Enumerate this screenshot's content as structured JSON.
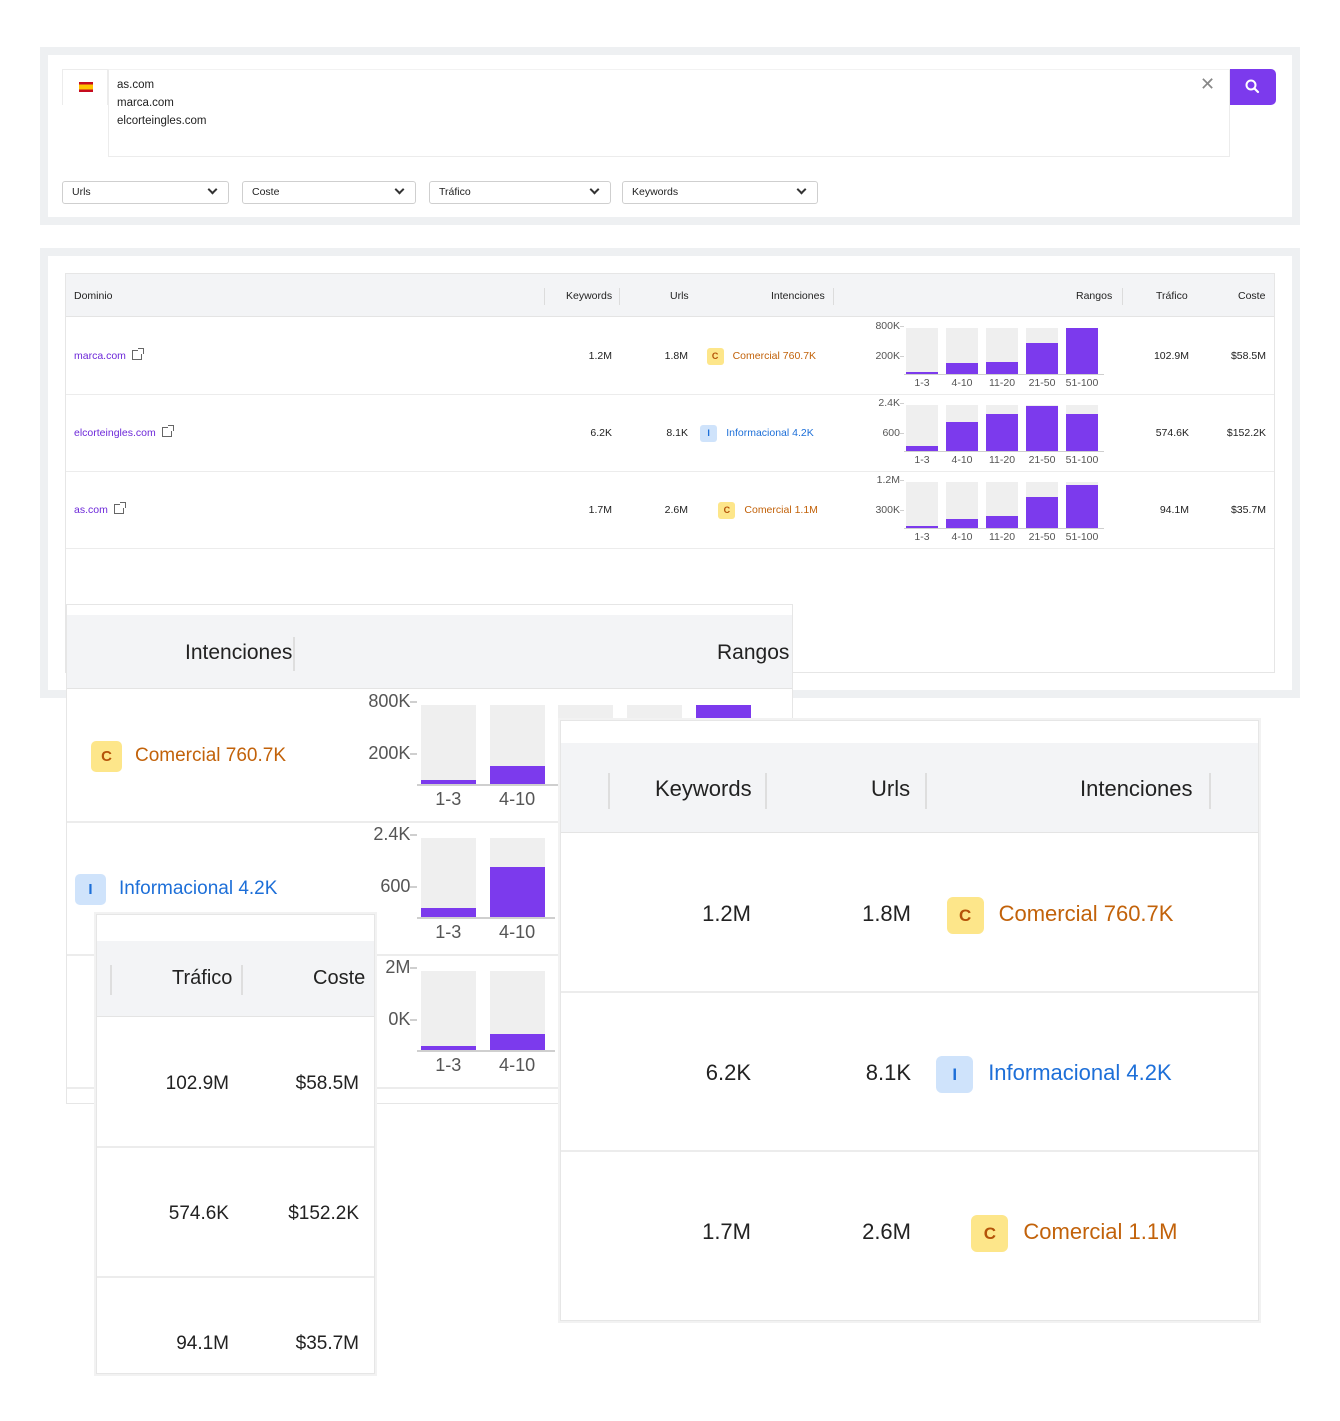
{
  "search": {
    "domains": [
      "as.com",
      "marca.com",
      "elcorteingles.com"
    ],
    "country_flag": "spain-flag",
    "accent": "#7c3aed"
  },
  "filters": [
    {
      "label": "Urls"
    },
    {
      "label": "Coste"
    },
    {
      "label": "Tráfico"
    },
    {
      "label": "Keywords"
    }
  ],
  "table": {
    "headers": {
      "domain": "Dominio",
      "keywords": "Keywords",
      "urls": "Urls",
      "intents": "Intenciones",
      "ranks": "Rangos",
      "traffic": "Tráfico",
      "cost": "Coste"
    },
    "rows": [
      {
        "domain": "marca.com",
        "keywords": "1.2M",
        "urls": "1.8M",
        "intent_letter": "C",
        "intent_label": "Comercial 760.7K",
        "intent_kind": "comercial",
        "traffic": "102.9M",
        "cost": "$58.5M",
        "ranks": {
          "y_top": "800K",
          "y_mid": "200K",
          "buckets": [
            "1-3",
            "4-10",
            "11-20",
            "21-50",
            "51-100"
          ],
          "fill": [
            0.05,
            0.23,
            0.27,
            0.68,
            1.0
          ]
        }
      },
      {
        "domain": "elcorteingles.com",
        "keywords": "6.2K",
        "urls": "8.1K",
        "intent_letter": "I",
        "intent_label": "Informacional 4.2K",
        "intent_kind": "informacional",
        "traffic": "574.6K",
        "cost": "$152.2K",
        "ranks": {
          "y_top": "2.4K",
          "y_mid": "600",
          "buckets": [
            "1-3",
            "4-10",
            "11-20",
            "21-50",
            "51-100"
          ],
          "fill": [
            0.11,
            0.63,
            0.8,
            0.97,
            0.8
          ]
        }
      },
      {
        "domain": "as.com",
        "keywords": "1.7M",
        "urls": "2.6M",
        "intent_letter": "C",
        "intent_label": "Comercial 1.1M",
        "intent_kind": "comercial",
        "traffic": "94.1M",
        "cost": "$35.7M",
        "ranks": {
          "y_top": "1.2M",
          "y_mid": "300K",
          "buckets": [
            "1-3",
            "4-10",
            "11-20",
            "21-50",
            "51-100"
          ],
          "fill": [
            0.05,
            0.2,
            0.27,
            0.68,
            0.93
          ]
        }
      }
    ]
  },
  "zoom": {
    "a_partial_labels": {
      "row3_y_top": "2M",
      "row3_y_mid": "0K"
    }
  }
}
